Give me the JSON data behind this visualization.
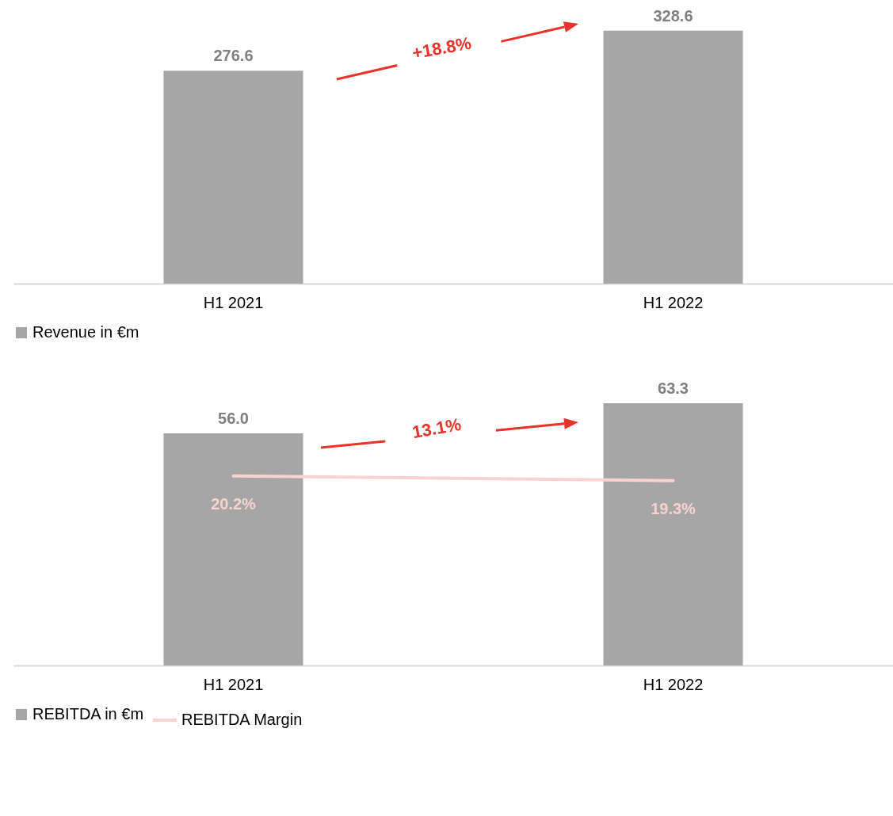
{
  "chart_data": [
    {
      "type": "bar",
      "categories": [
        "H1 2021",
        "H1 2022"
      ],
      "series": [
        {
          "name": "Revenue in €m",
          "color": "#a6a6a6",
          "values": [
            276.6,
            328.6
          ]
        }
      ],
      "data_labels": true,
      "tick_labels": "x",
      "legend": "bottom",
      "annotations": [
        "+18.8%"
      ]
    },
    {
      "type": "bar",
      "categories": [
        "H1 2021",
        "H1 2022"
      ],
      "series": [
        {
          "name": "REBITDA in €m",
          "color": "#a6a6a6",
          "values": [
            56.0,
            63.3
          ],
          "value_labels": [
            "56.0",
            "63.3"
          ]
        },
        {
          "name": "REBITDA Margin",
          "type": "line",
          "axis": "y2",
          "color": "#f8d3cf",
          "values": [
            20.2,
            19.3
          ],
          "value_labels": [
            "20.2%",
            "19.3%"
          ]
        }
      ],
      "tick_labels": "x",
      "legend": "bottom",
      "annotations": [
        "13.1%"
      ]
    }
  ]
}
